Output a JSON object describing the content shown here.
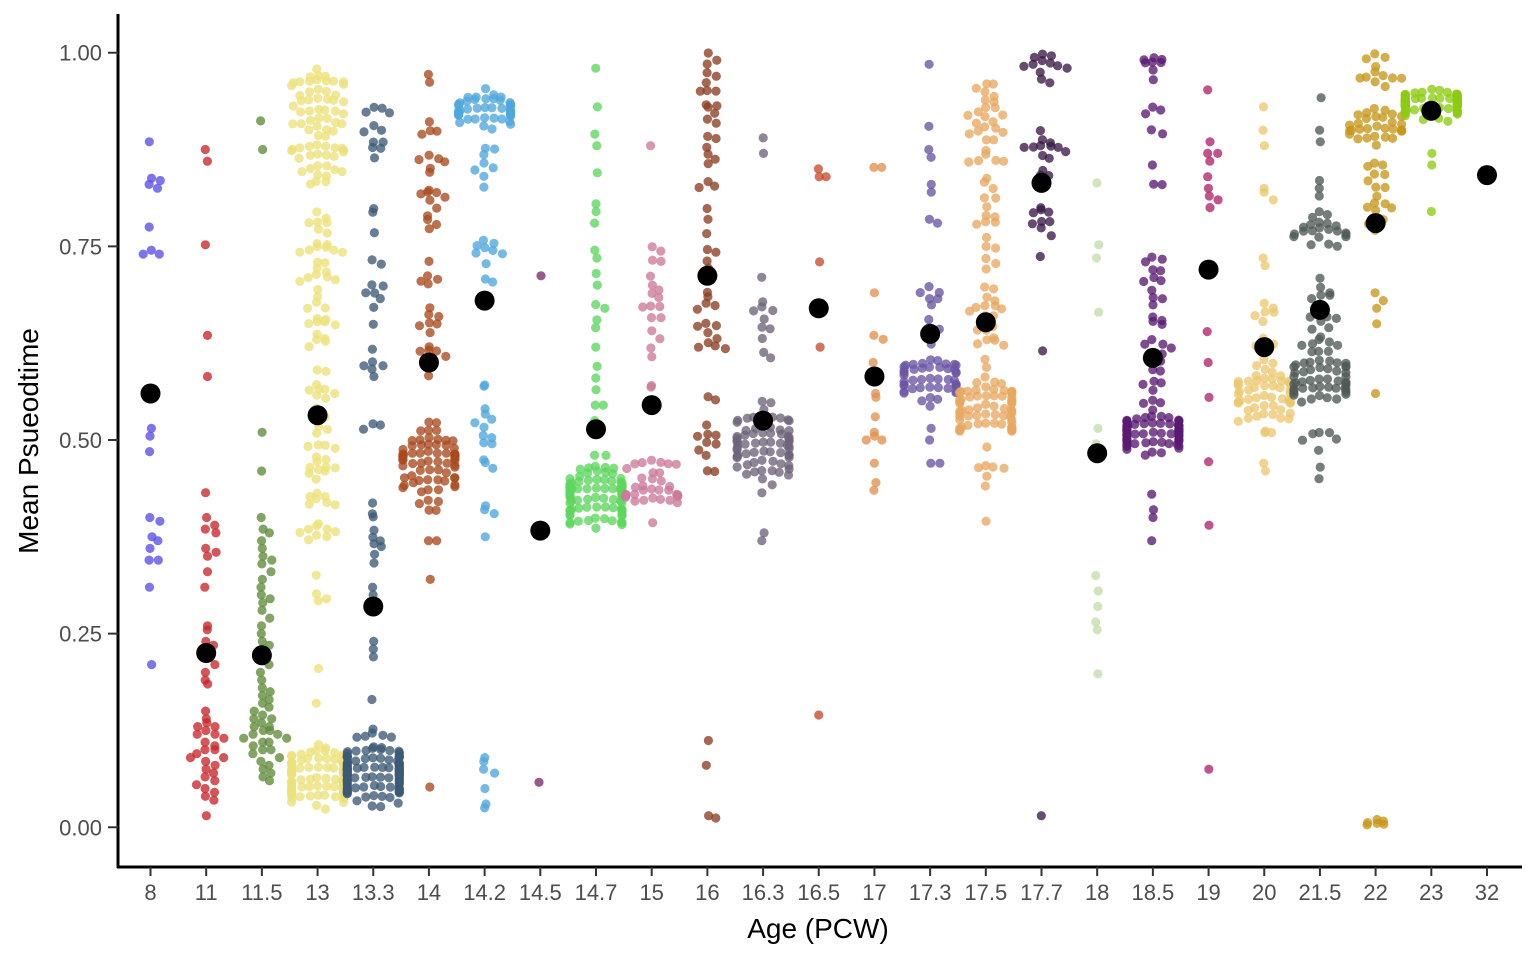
{
  "chart_data": {
    "type": "scatter",
    "subtype": "beeswarm with group means",
    "title": "",
    "xlabel": "Age (PCW)",
    "ylabel": "Mean Psueodtime",
    "ylim": [
      -0.05,
      1.05
    ],
    "y_ticks": [
      "0.00",
      "0.25",
      "0.50",
      "0.75",
      "1.00"
    ],
    "grid": false,
    "legend": "none",
    "mean_color": "#000000",
    "groups": [
      {
        "age": "8",
        "color": "#5a4ee8",
        "mean": 0.56
      },
      {
        "age": "11",
        "color": "#c8262a",
        "mean": 0.225
      },
      {
        "age": "11.5",
        "color": "#5f8a38",
        "mean": 0.222
      },
      {
        "age": "13",
        "color": "#ece27a",
        "mean": 0.532
      },
      {
        "age": "13.3",
        "color": "#3c5a76",
        "mean": 0.285
      },
      {
        "age": "14",
        "color": "#a94a1f",
        "mean": 0.6
      },
      {
        "age": "14.2",
        "color": "#4ea6dc",
        "mean": 0.68
      },
      {
        "age": "14.5",
        "color": "#7a2a6e",
        "mean": 0.383
      },
      {
        "age": "14.7",
        "color": "#5cd65c",
        "mean": 0.514
      },
      {
        "age": "15",
        "color": "#cc7a9a",
        "mean": 0.545
      },
      {
        "age": "16",
        "color": "#8a3e22",
        "mean": 0.712
      },
      {
        "age": "16.3",
        "color": "#6e6478",
        "mean": 0.525
      },
      {
        "age": "16.5",
        "color": "#c84c2c",
        "mean": 0.67
      },
      {
        "age": "17",
        "color": "#e09250",
        "mean": 0.582
      },
      {
        "age": "17.3",
        "color": "#6a54a4",
        "mean": 0.637
      },
      {
        "age": "17.5",
        "color": "#e8a860",
        "mean": 0.652
      },
      {
        "age": "17.7",
        "color": "#3a1a48",
        "mean": 0.832
      },
      {
        "age": "18",
        "color": "#c4dcaa",
        "mean": 0.483
      },
      {
        "age": "18.5",
        "color": "#5a1a72",
        "mean": 0.606
      },
      {
        "age": "19",
        "color": "#b0246a",
        "mean": 0.72
      },
      {
        "age": "20",
        "color": "#ecc870",
        "mean": 0.62
      },
      {
        "age": "21.5",
        "color": "#4e5a56",
        "mean": 0.668
      },
      {
        "age": "22",
        "color": "#c8961a",
        "mean": 0.78
      },
      {
        "age": "23",
        "color": "#8ccc12",
        "mean": 0.925
      },
      {
        "age": "32",
        "color": "#000000",
        "mean": 0.842
      }
    ],
    "points": {
      "8": [
        0.885,
        0.835,
        0.838,
        0.83,
        0.825,
        0.775,
        0.745,
        0.74,
        0.74,
        0.515,
        0.505,
        0.485,
        0.4,
        0.395,
        0.375,
        0.37,
        0.36,
        0.345,
        0.345,
        0.31,
        0.21
      ],
      "11": [
        0.875,
        0.86,
        0.752,
        0.635,
        0.582,
        0.432,
        0.4,
        0.39,
        0.385,
        0.38,
        0.36,
        0.355,
        0.35,
        0.33,
        0.31,
        0.26,
        0.255,
        0.24,
        0.235,
        0.22,
        0.21,
        0.2,
        0.19,
        0.185,
        0.15,
        0.14,
        0.135,
        0.13,
        0.13,
        0.125,
        0.12,
        0.12,
        0.115,
        0.11,
        0.105,
        0.1,
        0.1,
        0.095,
        0.09,
        0.09,
        0.085,
        0.08,
        0.075,
        0.07,
        0.065,
        0.06,
        0.055,
        0.05,
        0.045,
        0.04,
        0.035,
        0.015
      ],
      "11.5": [
        0.912,
        0.875,
        0.51,
        0.46,
        0.4,
        0.385,
        0.38,
        0.37,
        0.36,
        0.35,
        0.345,
        0.34,
        0.33,
        0.32,
        0.31,
        0.3,
        0.295,
        0.29,
        0.28,
        0.27,
        0.26,
        0.25,
        0.24,
        0.235,
        0.23,
        0.22,
        0.21,
        0.2,
        0.19,
        0.18,
        0.175,
        0.17,
        0.165,
        0.16,
        0.155,
        0.15,
        0.145,
        0.14,
        0.14,
        0.135,
        0.13,
        0.13,
        0.125,
        0.125,
        0.12,
        0.12,
        0.115,
        0.115,
        0.11,
        0.11,
        0.105,
        0.1,
        0.1,
        0.095,
        0.09,
        0.085,
        0.08,
        0.075,
        0.07,
        0.065,
        0.06
      ],
      "13": "dense",
      "13.3": "dense",
      "14": "dense",
      "14.2": "dense",
      "14.5": [
        0.712,
        0.058
      ],
      "14.7": "dense",
      "15": "dense",
      "16": "dense",
      "16.3": "dense",
      "16.5": [
        0.85,
        0.84,
        0.84,
        0.73,
        0.62,
        0.145
      ],
      "17": [
        0.852,
        0.852,
        0.69,
        0.635,
        0.63,
        0.6,
        0.585,
        0.575,
        0.56,
        0.555,
        0.53,
        0.51,
        0.505,
        0.5,
        0.5,
        0.47,
        0.445,
        0.435
      ],
      "17.3": "dense",
      "17.5": "dense",
      "17.7": "dense",
      "18": [
        0.832,
        0.752,
        0.735,
        0.665,
        0.515,
        0.495,
        0.325,
        0.305,
        0.285,
        0.265,
        0.255,
        0.198
      ],
      "18.5": "dense",
      "19": [
        0.952,
        0.885,
        0.87,
        0.87,
        0.86,
        0.84,
        0.825,
        0.815,
        0.81,
        0.8,
        0.64,
        0.6,
        0.555,
        0.472,
        0.39,
        0.075
      ],
      "20": "dense",
      "21.5": "dense",
      "22": "dense",
      "23": "dense",
      "32": []
    }
  }
}
